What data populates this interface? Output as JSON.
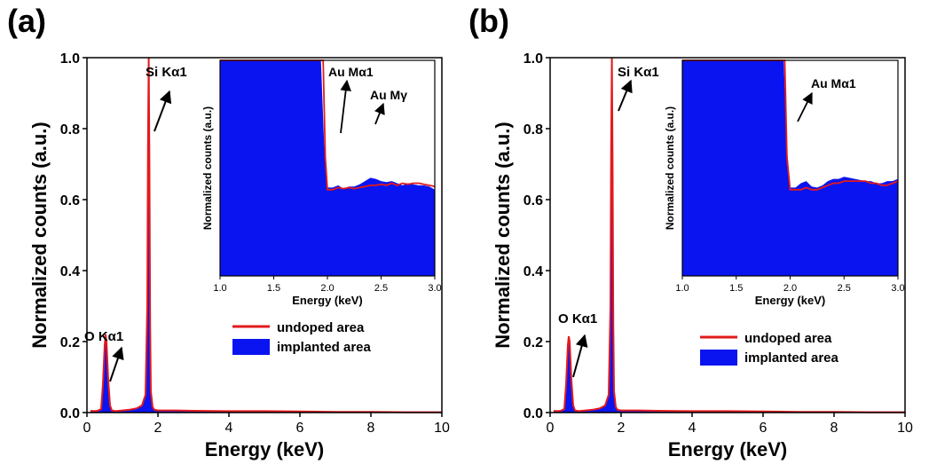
{
  "chart_data": [
    {
      "panel_label": "(a)",
      "type": "area",
      "xlabel": "Energy (keV)",
      "ylabel": "Normalized counts (a.u.)",
      "xlim": [
        0,
        10
      ],
      "ylim": [
        0,
        1.0
      ],
      "x_ticks": [
        "0",
        "2",
        "4",
        "6",
        "8",
        "10"
      ],
      "y_ticks": [
        "0.0",
        "0.2",
        "0.4",
        "0.6",
        "0.8",
        "1.0"
      ],
      "legend_position": "lower-right",
      "series": [
        {
          "name": "undoped area",
          "color": "#e31a1c",
          "style": "line",
          "x": [
            0.1,
            0.2,
            0.3,
            0.4,
            0.45,
            0.5,
            0.525,
            0.55,
            0.6,
            0.65,
            0.7,
            0.8,
            1.0,
            1.2,
            1.4,
            1.55,
            1.65,
            1.7,
            1.72,
            1.74,
            1.76,
            1.78,
            1.8,
            1.85,
            1.9,
            2.0,
            2.5,
            3,
            4,
            5,
            6,
            7,
            8,
            9,
            10
          ],
          "y": [
            0.005,
            0.004,
            0.005,
            0.01,
            0.08,
            0.19,
            0.22,
            0.2,
            0.09,
            0.02,
            0.006,
            0.004,
            0.006,
            0.008,
            0.012,
            0.02,
            0.05,
            0.3,
            0.75,
            1.0,
            0.7,
            0.25,
            0.06,
            0.015,
            0.008,
            0.006,
            0.006,
            0.005,
            0.004,
            0.004,
            0.003,
            0.002,
            0.002,
            0.001,
            0.001
          ]
        },
        {
          "name": "implanted area",
          "color": "#0a14f0",
          "style": "fill",
          "x": [
            0.1,
            0.2,
            0.3,
            0.4,
            0.45,
            0.5,
            0.525,
            0.55,
            0.6,
            0.65,
            0.7,
            0.8,
            1.0,
            1.2,
            1.4,
            1.55,
            1.65,
            1.7,
            1.72,
            1.74,
            1.76,
            1.78,
            1.8,
            1.85,
            1.9,
            2.0,
            2.5,
            3,
            4,
            5,
            6,
            7,
            8,
            9,
            10
          ],
          "y": [
            0.005,
            0.004,
            0.005,
            0.01,
            0.07,
            0.17,
            0.2,
            0.18,
            0.08,
            0.02,
            0.006,
            0.004,
            0.006,
            0.008,
            0.012,
            0.02,
            0.05,
            0.3,
            0.74,
            0.99,
            0.69,
            0.25,
            0.06,
            0.015,
            0.008,
            0.006,
            0.006,
            0.005,
            0.004,
            0.004,
            0.003,
            0.002,
            0.002,
            0.001,
            0.001
          ]
        }
      ],
      "annotations": [
        {
          "text": "O Kα1",
          "x": 0.52,
          "y": 0.22
        },
        {
          "text": "Si Kα1",
          "x": 1.74,
          "y": 1.0
        }
      ],
      "inset": {
        "xlabel": "Energy (keV)",
        "ylabel": "Normalized counts (a.u.)",
        "xlim": [
          1.0,
          3.0
        ],
        "x_ticks": [
          "1.0",
          "1.5",
          "2.0",
          "2.5",
          "3.0"
        ],
        "annotations": [
          {
            "text": "Au Mα1",
            "x": 2.12
          },
          {
            "text": "Au Mγ",
            "x": 2.4
          }
        ],
        "series": [
          {
            "name": "undoped area",
            "color": "#e31a1c",
            "style": "line",
            "x": [
              1.0,
              1.5,
              1.9,
              1.96,
              1.98,
              2.0,
              2.05,
              2.1,
              2.15,
              2.2,
              2.25,
              2.3,
              2.35,
              2.4,
              2.45,
              2.5,
              2.55,
              2.6,
              2.65,
              2.7,
              2.75,
              2.8,
              2.85,
              2.9,
              2.95,
              3.0
            ],
            "y": [
              1.0,
              1.0,
              1.0,
              1.0,
              0.55,
              0.4,
              0.4,
              0.41,
              0.405,
              0.41,
              0.405,
              0.41,
              0.415,
              0.42,
              0.42,
              0.425,
              0.42,
              0.43,
              0.42,
              0.43,
              0.425,
              0.43,
              0.43,
              0.425,
              0.42,
              0.415
            ]
          },
          {
            "name": "implanted area",
            "color": "#0a14f0",
            "style": "fill",
            "x": [
              1.0,
              1.5,
              1.9,
              1.94,
              1.97,
              2.0,
              2.05,
              2.1,
              2.15,
              2.2,
              2.25,
              2.3,
              2.35,
              2.4,
              2.45,
              2.5,
              2.55,
              2.6,
              2.65,
              2.7,
              2.75,
              2.8,
              2.85,
              2.9,
              2.95,
              3.0
            ],
            "y": [
              1.0,
              1.0,
              1.0,
              1.0,
              0.6,
              0.41,
              0.41,
              0.42,
              0.405,
              0.415,
              0.415,
              0.425,
              0.44,
              0.455,
              0.45,
              0.44,
              0.435,
              0.44,
              0.43,
              0.42,
              0.43,
              0.425,
              0.42,
              0.42,
              0.415,
              0.4
            ]
          }
        ]
      }
    },
    {
      "panel_label": "(b)",
      "type": "area",
      "xlabel": "Energy (keV)",
      "ylabel": "Normalized counts (a.u.)",
      "xlim": [
        0,
        10
      ],
      "ylim": [
        0,
        1.0
      ],
      "x_ticks": [
        "0",
        "2",
        "4",
        "6",
        "8",
        "10"
      ],
      "y_ticks": [
        "0.0",
        "0.2",
        "0.4",
        "0.6",
        "0.8",
        "1.0"
      ],
      "legend_position": "lower-right",
      "series": [
        {
          "name": "undoped area",
          "color": "#e31a1c",
          "style": "line",
          "x": [
            0.1,
            0.2,
            0.3,
            0.4,
            0.45,
            0.5,
            0.525,
            0.55,
            0.6,
            0.65,
            0.7,
            0.8,
            1.0,
            1.2,
            1.4,
            1.55,
            1.65,
            1.7,
            1.72,
            1.74,
            1.76,
            1.78,
            1.8,
            1.85,
            1.9,
            2.0,
            2.5,
            3,
            4,
            5,
            6,
            7,
            8,
            9,
            10
          ],
          "y": [
            0.005,
            0.004,
            0.005,
            0.01,
            0.08,
            0.19,
            0.215,
            0.2,
            0.09,
            0.02,
            0.006,
            0.004,
            0.006,
            0.008,
            0.012,
            0.02,
            0.05,
            0.3,
            0.75,
            1.0,
            0.7,
            0.25,
            0.06,
            0.015,
            0.008,
            0.006,
            0.006,
            0.005,
            0.004,
            0.004,
            0.003,
            0.002,
            0.002,
            0.001,
            0.001
          ]
        },
        {
          "name": "implanted area",
          "color": "#0a14f0",
          "style": "fill",
          "x": [
            0.1,
            0.2,
            0.3,
            0.4,
            0.45,
            0.5,
            0.525,
            0.55,
            0.6,
            0.65,
            0.7,
            0.8,
            1.0,
            1.2,
            1.4,
            1.55,
            1.65,
            1.7,
            1.72,
            1.74,
            1.76,
            1.78,
            1.8,
            1.85,
            1.9,
            2.0,
            2.5,
            3,
            4,
            5,
            6,
            7,
            8,
            9,
            10
          ],
          "y": [
            0.005,
            0.004,
            0.005,
            0.01,
            0.07,
            0.17,
            0.2,
            0.18,
            0.08,
            0.02,
            0.006,
            0.004,
            0.006,
            0.008,
            0.012,
            0.02,
            0.05,
            0.3,
            0.74,
            0.99,
            0.69,
            0.25,
            0.06,
            0.015,
            0.008,
            0.006,
            0.006,
            0.005,
            0.004,
            0.004,
            0.003,
            0.002,
            0.002,
            0.001,
            0.001
          ]
        }
      ],
      "annotations": [
        {
          "text": "O Kα1",
          "x": 0.52,
          "y": 0.215
        },
        {
          "text": "Si Kα1",
          "x": 1.74,
          "y": 1.0
        }
      ],
      "inset": {
        "xlabel": "Energy (keV)",
        "ylabel": "Normalized counts (a.u.)",
        "xlim": [
          1.0,
          3.0
        ],
        "x_ticks": [
          "1.0",
          "1.5",
          "2.0",
          "2.5",
          "3.0"
        ],
        "annotations": [
          {
            "text": "Au Mα1",
            "x": 2.12
          }
        ],
        "series": [
          {
            "name": "undoped area",
            "color": "#e31a1c",
            "style": "line",
            "x": [
              1.0,
              1.5,
              1.9,
              1.95,
              1.97,
              2.0,
              2.05,
              2.1,
              2.15,
              2.2,
              2.25,
              2.3,
              2.35,
              2.4,
              2.45,
              2.5,
              2.55,
              2.6,
              2.65,
              2.7,
              2.75,
              2.8,
              2.85,
              2.9,
              2.95,
              3.0
            ],
            "y": [
              1.0,
              1.0,
              1.0,
              1.0,
              0.55,
              0.4,
              0.4,
              0.4,
              0.41,
              0.4,
              0.4,
              0.41,
              0.42,
              0.43,
              0.43,
              0.44,
              0.44,
              0.44,
              0.44,
              0.44,
              0.43,
              0.43,
              0.42,
              0.42,
              0.43,
              0.44
            ]
          },
          {
            "name": "implanted area",
            "color": "#0a14f0",
            "style": "fill",
            "x": [
              1.0,
              1.5,
              1.9,
              1.94,
              1.97,
              2.0,
              2.05,
              2.1,
              2.15,
              2.2,
              2.25,
              2.3,
              2.35,
              2.4,
              2.45,
              2.5,
              2.55,
              2.6,
              2.65,
              2.7,
              2.75,
              2.8,
              2.85,
              2.9,
              2.95,
              3.0
            ],
            "y": [
              1.0,
              1.0,
              1.0,
              1.0,
              0.6,
              0.41,
              0.41,
              0.43,
              0.44,
              0.415,
              0.41,
              0.42,
              0.44,
              0.45,
              0.45,
              0.46,
              0.455,
              0.45,
              0.445,
              0.44,
              0.44,
              0.43,
              0.43,
              0.44,
              0.44,
              0.45
            ]
          }
        ]
      }
    }
  ]
}
